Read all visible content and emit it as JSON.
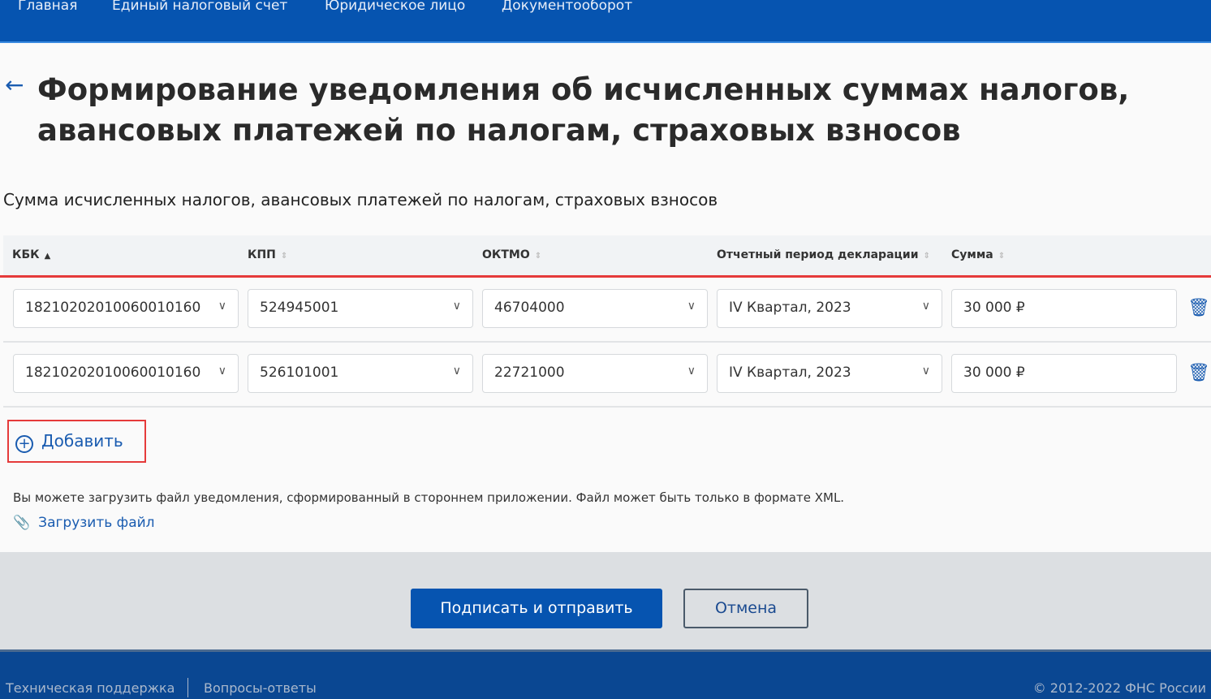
{
  "nav": [
    "Главная",
    "Единый налоговый счет",
    "Юридическое лицо",
    "Документооборот"
  ],
  "page": {
    "title": "Формирование уведомления об исчисленных суммах налогов, авансовых платежей по налогам, страховых взносов",
    "section": "Сумма исчисленных налогов, авансовых платежей по налогам, страховых взносов"
  },
  "table": {
    "headers": [
      "КБК",
      "КПП",
      "ОКТМО",
      "Отчетный период декларации",
      "Сумма"
    ],
    "sorted": "КБК ascending",
    "rows": [
      {
        "kbk": "18210202010060010160",
        "kpp": "524945001",
        "oktmo": "46704000",
        "period": "IV Квартал, 2023",
        "sum": "30 000 ₽"
      },
      {
        "kbk": "18210202010060010160",
        "kpp": "526101001",
        "oktmo": "22721000",
        "period": "IV Квартал, 2023",
        "sum": "30 000 ₽"
      }
    ]
  },
  "add_label": "Добавить",
  "upload_note": "Вы можете загрузить файл уведомления, сформированный в стороннем приложении. Файл может быть только в формате XML.",
  "upload_label": "Загрузить файл",
  "actions": {
    "submit": "Подписать и отправить",
    "cancel": "Отмена"
  },
  "footer": {
    "support": "Техническая поддержка",
    "faq": "Вопросы-ответы",
    "copyright": "© 2012-2022 ФНС России"
  },
  "colors": {
    "brand": "#0654b0",
    "highlight": "#e53a3a"
  }
}
